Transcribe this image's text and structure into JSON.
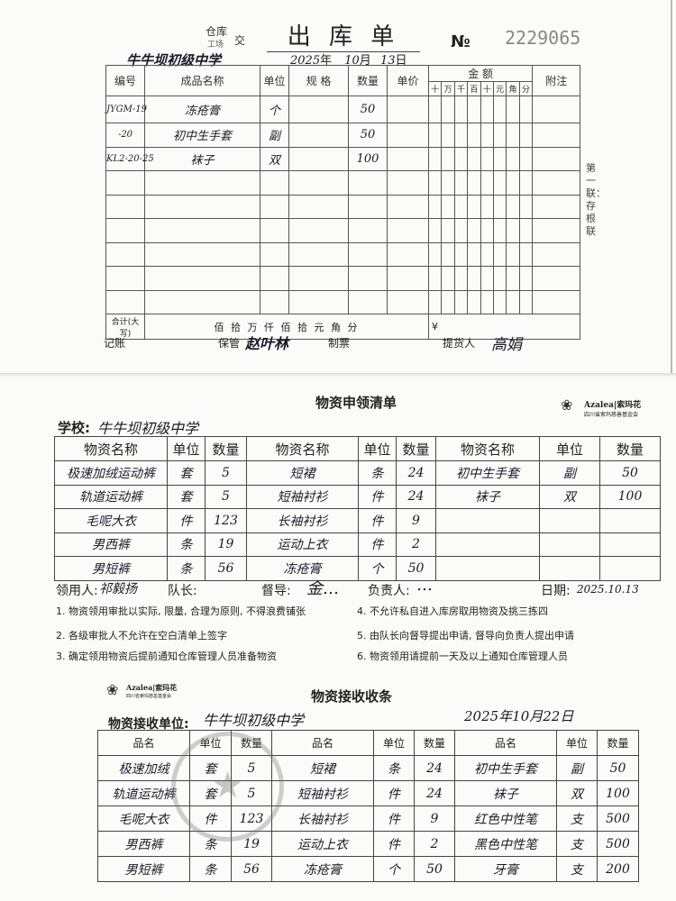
{
  "out_slip": {
    "title": "出 库 单",
    "copy_label_top": "仓库",
    "copy_label_bottom": "工场",
    "copy_label_side": "交",
    "no_label": "№",
    "serial": "2229065",
    "recipient": "牛牛坝初级中学",
    "date": {
      "year": "2025",
      "year_label": "年",
      "month": "10",
      "month_label": "月",
      "day": "13",
      "day_label": "日"
    },
    "headers": [
      "编号",
      "成品名称",
      "单位",
      "规 格",
      "数量",
      "单价"
    ],
    "amount_header": "金    额",
    "amount_digits": [
      "十",
      "万",
      "千",
      "百",
      "十",
      "元",
      "角",
      "分"
    ],
    "remark_header": "附注",
    "rows": [
      [
        "JYGM-19",
        "冻疮膏",
        "个",
        "",
        "50",
        ""
      ],
      [
        "-20",
        "初中生手套",
        "副",
        "",
        "50",
        ""
      ],
      [
        "KL2-20-25",
        "袜子",
        "双",
        "",
        "100",
        ""
      ]
    ],
    "total_label": "合计(大写)",
    "total_units": "佰  拾  万  仟  佰  拾  元  角  分",
    "yen": "¥",
    "side_note": "第一联：存根联",
    "footer": {
      "bookkeeping": "记账",
      "custodian_label": "保管",
      "custodian": "赵叶林",
      "ticketing": "制票",
      "picker_label": "提货人",
      "picker": "高娟"
    }
  },
  "requisition": {
    "title": "物资申领清单",
    "logo_text": "Azalea|索玛花",
    "logo_sub": "四川省索玛慈善基金会",
    "school_label": "学校:",
    "school": "牛牛坝初级中学",
    "headers": [
      "物资名称",
      "单位",
      "数量",
      "物资名称",
      "单位",
      "数量",
      "物资名称",
      "单位",
      "数量"
    ],
    "rows": [
      [
        "极速加绒运动裤",
        "套",
        "5",
        "短裙",
        "条",
        "24",
        "初中生手套",
        "副",
        "50"
      ],
      [
        "轨道运动裤",
        "套",
        "5",
        "短袖衬衫",
        "件",
        "24",
        "袜子",
        "双",
        "100"
      ],
      [
        "毛呢大衣",
        "件",
        "123",
        "长袖衬衫",
        "件",
        "9",
        "",
        "",
        ""
      ],
      [
        "男西裤",
        "条",
        "19",
        "运动上衣",
        "件",
        "2",
        "",
        "",
        ""
      ],
      [
        "男短裤",
        "条",
        "56",
        "冻疮膏",
        "个",
        "50",
        "",
        "",
        ""
      ]
    ],
    "signatures": {
      "receiver_label": "领用人:",
      "receiver": "祁毅扬",
      "captain_label": "队长:",
      "supervisor_label": "督导:",
      "supervisor": "金…",
      "manager_label": "负责人:",
      "manager": "…",
      "date_label": "日期:",
      "date": "2025.10.13"
    },
    "rules": [
      "1. 物资领用审批以实际, 限量, 合理为原则, 不得浪费铺张",
      "4. 不允许私自进入库房取用物资及挑三拣四",
      "2. 各级审批人不允许在空白清单上签字",
      "5. 由队长向督导提出申请, 督导向负责人提出申请",
      "3. 确定领用物资后提前通知仓库管理人员准备物资",
      "6. 物资领用请提前一天及以上通知仓库管理人员"
    ]
  },
  "receipt": {
    "title": "物资接收收条",
    "logo_text": "Azalea|索玛花",
    "logo_sub": "四川省索玛慈善基金会",
    "unit_label": "物资接收单位:",
    "unit": "牛牛坝初级中学",
    "date": "2025年10月22日",
    "headers": [
      "品名",
      "单位",
      "数量",
      "品名",
      "单位",
      "数量",
      "品名",
      "单位",
      "数量"
    ],
    "rows": [
      [
        "极速加绒",
        "套",
        "5",
        "短裙",
        "条",
        "24",
        "初中生手套",
        "副",
        "50"
      ],
      [
        "轨道运动裤",
        "套",
        "5",
        "短袖衬衫",
        "件",
        "24",
        "袜子",
        "双",
        "100"
      ],
      [
        "毛呢大衣",
        "件",
        "123",
        "长袖衬衫",
        "件",
        "9",
        "红色中性笔",
        "支",
        "500"
      ],
      [
        "男西裤",
        "条",
        "19",
        "运动上衣",
        "件",
        "2",
        "黑色中性笔",
        "支",
        "500"
      ],
      [
        "男短裤",
        "条",
        "56",
        "冻疮膏",
        "个",
        "50",
        "牙膏",
        "支",
        "200"
      ]
    ]
  }
}
